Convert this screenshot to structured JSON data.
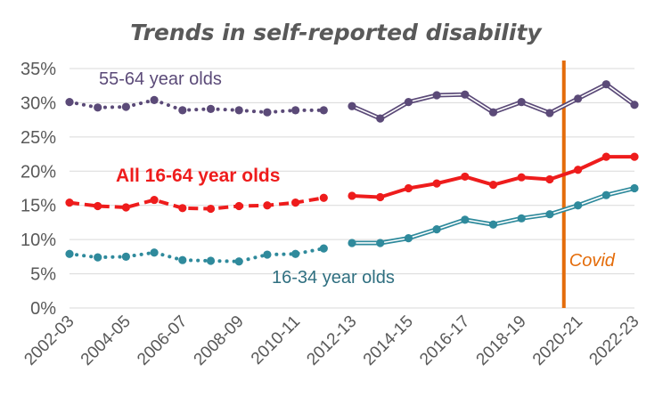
{
  "chart_data": {
    "type": "line",
    "title": "Trends in self-reported disability",
    "xlabel": "",
    "ylabel": "",
    "ylim": [
      0,
      35
    ],
    "yticks": [
      "0%",
      "5%",
      "10%",
      "15%",
      "20%",
      "25%",
      "30%",
      "35%"
    ],
    "x": [
      "2002-03",
      "2003-04",
      "2004-05",
      "2005-06",
      "2006-07",
      "2007-08",
      "2008-09",
      "2009-10",
      "2010-11",
      "2011-12",
      "2012-13",
      "2013-14",
      "2014-15",
      "2015-16",
      "2016-17",
      "2017-18",
      "2018-19",
      "2019-20",
      "2020-21",
      "2021-22",
      "2022-23"
    ],
    "xtick_labels": [
      "2002-03",
      "2004-05",
      "2006-07",
      "2008-09",
      "2010-11",
      "2012-13",
      "2014-15",
      "2016-17",
      "2018-19",
      "2020-21",
      "2022-23"
    ],
    "grid": true,
    "series": [
      {
        "name": "55-64 year olds",
        "color": "#5b4a78",
        "break_after": "2011-12",
        "values": [
          30.1,
          29.3,
          29.4,
          30.4,
          28.9,
          29.1,
          28.9,
          28.6,
          28.9,
          28.9,
          29.5,
          27.7,
          30.1,
          31.1,
          31.2,
          28.6,
          30.1,
          28.5,
          30.6,
          32.7,
          29.7
        ]
      },
      {
        "name": "All 16-64 year olds",
        "color": "#ee1c1c",
        "break_after": "2011-12",
        "values": [
          15.4,
          14.9,
          14.7,
          15.8,
          14.6,
          14.5,
          14.9,
          15.0,
          15.4,
          16.1,
          16.4,
          16.2,
          17.5,
          18.2,
          19.2,
          18.0,
          19.1,
          18.8,
          20.2,
          22.1,
          22.1
        ]
      },
      {
        "name": "16-34 year olds",
        "color": "#2f8a9c",
        "break_after": "2011-12",
        "values": [
          7.9,
          7.4,
          7.5,
          8.1,
          7.0,
          6.9,
          6.8,
          7.8,
          7.9,
          8.7,
          9.5,
          9.5,
          10.2,
          11.5,
          12.9,
          12.2,
          13.1,
          13.7,
          15.0,
          16.5,
          17.5
        ]
      }
    ],
    "annotations": [
      {
        "text": "Covid",
        "x_between": [
          "2019-20",
          "2020-21"
        ],
        "color": "#e46c0a"
      }
    ]
  }
}
